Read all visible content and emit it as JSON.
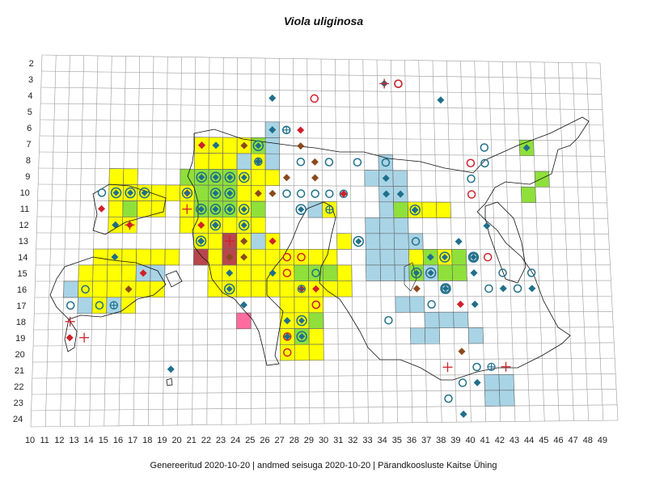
{
  "title": "Viola uliginosa",
  "footer": {
    "generated": "Genereeritud 2020-10-20",
    "data_state": "andmed seisuga 2020-10-20",
    "org": "Pärandkoosluste Kaitse Ühing",
    "separator": "|"
  },
  "colors": {
    "grid": "#9a9a9a",
    "yellow": "#ffff00",
    "green": "#8fe03a",
    "blue": "#a8d4e6",
    "darkred": "#b8464c",
    "pink": "#ff6b9e",
    "teal": "#1f6f8b",
    "brown": "#8b4a1c",
    "red": "#d0202a",
    "coast": "#111111"
  },
  "axes": {
    "x_labels": [
      "10",
      "11",
      "12",
      "13",
      "14",
      "15",
      "16",
      "17",
      "18",
      "19",
      "20",
      "21",
      "22",
      "23",
      "24",
      "25",
      "26",
      "27",
      "28",
      "29",
      "30",
      "31",
      "32",
      "33",
      "34",
      "35",
      "36",
      "37",
      "38",
      "39",
      "40",
      "41",
      "42",
      "43",
      "44",
      "45",
      "46",
      "47",
      "48",
      "49"
    ],
    "y_labels": [
      "2",
      "3",
      "4",
      "5",
      "6",
      "7",
      "8",
      "9",
      "10",
      "11",
      "12",
      "13",
      "14",
      "15",
      "16",
      "17",
      "18",
      "19",
      "20",
      "21",
      "22",
      "23",
      "24"
    ]
  },
  "legend_note": "",
  "cells": {
    "yellow": [
      [
        21,
        7
      ],
      [
        22,
        7
      ],
      [
        23,
        7
      ],
      [
        24,
        7
      ],
      [
        25,
        7
      ],
      [
        21,
        8
      ],
      [
        22,
        8
      ],
      [
        23,
        8
      ],
      [
        24,
        8
      ],
      [
        25,
        8
      ],
      [
        26,
        8
      ],
      [
        15,
        9
      ],
      [
        16,
        9
      ],
      [
        20,
        9
      ],
      [
        21,
        9
      ],
      [
        22,
        9
      ],
      [
        23,
        9
      ],
      [
        24,
        9
      ],
      [
        25,
        9
      ],
      [
        26,
        9
      ],
      [
        15,
        10
      ],
      [
        16,
        10
      ],
      [
        17,
        10
      ],
      [
        18,
        10
      ],
      [
        19,
        10
      ],
      [
        20,
        10
      ],
      [
        21,
        10
      ],
      [
        22,
        10
      ],
      [
        23,
        10
      ],
      [
        24,
        10
      ],
      [
        25,
        10
      ],
      [
        15,
        11
      ],
      [
        16,
        11
      ],
      [
        17,
        11
      ],
      [
        18,
        11
      ],
      [
        20,
        11
      ],
      [
        21,
        11
      ],
      [
        22,
        11
      ],
      [
        23,
        11
      ],
      [
        24,
        11
      ],
      [
        25,
        11
      ],
      [
        30,
        11
      ],
      [
        15,
        12
      ],
      [
        16,
        12
      ],
      [
        20,
        12
      ],
      [
        21,
        12
      ],
      [
        22,
        12
      ],
      [
        23,
        12
      ],
      [
        24,
        12
      ],
      [
        25,
        12
      ],
      [
        21,
        13
      ],
      [
        22,
        13
      ],
      [
        23,
        13
      ],
      [
        24,
        13
      ],
      [
        26,
        13
      ],
      [
        31,
        13
      ],
      [
        14,
        14
      ],
      [
        15,
        14
      ],
      [
        16,
        14
      ],
      [
        17,
        14
      ],
      [
        18,
        14
      ],
      [
        19,
        14
      ],
      [
        21,
        14
      ],
      [
        22,
        14
      ],
      [
        23,
        14
      ],
      [
        24,
        14
      ],
      [
        25,
        14
      ],
      [
        26,
        14
      ],
      [
        27,
        14
      ],
      [
        28,
        14
      ],
      [
        29,
        14
      ],
      [
        30,
        14
      ],
      [
        13,
        15
      ],
      [
        14,
        15
      ],
      [
        15,
        15
      ],
      [
        16,
        15
      ],
      [
        17,
        15
      ],
      [
        18,
        15
      ],
      [
        22,
        15
      ],
      [
        23,
        15
      ],
      [
        24,
        15
      ],
      [
        25,
        15
      ],
      [
        26,
        15
      ],
      [
        27,
        15
      ],
      [
        28,
        15
      ],
      [
        29,
        15
      ],
      [
        30,
        15
      ],
      [
        31,
        15
      ],
      [
        12,
        16
      ],
      [
        13,
        16
      ],
      [
        14,
        16
      ],
      [
        15,
        16
      ],
      [
        16,
        16
      ],
      [
        17,
        16
      ],
      [
        18,
        16
      ],
      [
        22,
        16
      ],
      [
        23,
        16
      ],
      [
        24,
        16
      ],
      [
        25,
        16
      ],
      [
        26,
        16
      ],
      [
        27,
        16
      ],
      [
        28,
        16
      ],
      [
        29,
        16
      ],
      [
        30,
        16
      ],
      [
        31,
        16
      ],
      [
        14,
        17
      ],
      [
        15,
        17
      ],
      [
        16,
        17
      ],
      [
        27,
        17
      ],
      [
        28,
        17
      ],
      [
        29,
        17
      ],
      [
        27,
        18
      ],
      [
        28,
        18
      ],
      [
        29,
        18
      ],
      [
        27,
        19
      ],
      [
        28,
        19
      ],
      [
        29,
        19
      ],
      [
        27,
        20
      ],
      [
        28,
        20
      ],
      [
        29,
        20
      ],
      [
        36,
        11
      ],
      [
        37,
        11
      ],
      [
        38,
        11
      ],
      [
        35,
        14
      ],
      [
        36,
        14
      ],
      [
        37,
        14
      ],
      [
        38,
        14
      ],
      [
        35,
        15
      ],
      [
        36,
        15
      ],
      [
        37,
        15
      ],
      [
        38,
        15
      ],
      [
        39,
        15
      ]
    ],
    "green": [
      [
        25,
        7
      ],
      [
        20,
        9
      ],
      [
        21,
        9
      ],
      [
        22,
        9
      ],
      [
        23,
        9
      ],
      [
        21,
        10
      ],
      [
        22,
        10
      ],
      [
        23,
        10
      ],
      [
        21,
        11
      ],
      [
        22,
        11
      ],
      [
        23,
        11
      ],
      [
        25,
        11
      ],
      [
        16,
        11
      ],
      [
        28,
        15
      ],
      [
        29,
        15
      ],
      [
        30,
        15
      ],
      [
        29,
        18
      ],
      [
        28,
        19
      ],
      [
        37,
        14
      ],
      [
        39,
        14
      ],
      [
        36,
        15
      ],
      [
        38,
        15
      ],
      [
        39,
        15
      ],
      [
        44,
        7
      ],
      [
        44,
        10
      ],
      [
        45,
        9
      ],
      [
        35,
        11
      ]
    ],
    "blue": [
      [
        26,
        6
      ],
      [
        26,
        7
      ],
      [
        26,
        8
      ],
      [
        24,
        8
      ],
      [
        34,
        8
      ],
      [
        33,
        9
      ],
      [
        34,
        9
      ],
      [
        35,
        9
      ],
      [
        34,
        10
      ],
      [
        35,
        10
      ],
      [
        29,
        11
      ],
      [
        34,
        11
      ],
      [
        35,
        11
      ],
      [
        33,
        12
      ],
      [
        34,
        12
      ],
      [
        35,
        12
      ],
      [
        33,
        13
      ],
      [
        34,
        13
      ],
      [
        35,
        13
      ],
      [
        36,
        13
      ],
      [
        33,
        14
      ],
      [
        34,
        14
      ],
      [
        35,
        14
      ],
      [
        33,
        15
      ],
      [
        34,
        15
      ],
      [
        35,
        15
      ],
      [
        36,
        15
      ],
      [
        37,
        15
      ],
      [
        38,
        15
      ],
      [
        17,
        15
      ],
      [
        18,
        15
      ],
      [
        12,
        16
      ],
      [
        13,
        17
      ],
      [
        15,
        17
      ],
      [
        25,
        13
      ],
      [
        35,
        17
      ],
      [
        36,
        17
      ],
      [
        37,
        18
      ],
      [
        38,
        18
      ],
      [
        39,
        18
      ],
      [
        36,
        19
      ],
      [
        37,
        19
      ],
      [
        40,
        19
      ],
      [
        41,
        22
      ],
      [
        42,
        22
      ],
      [
        41,
        23
      ],
      [
        42,
        23
      ]
    ],
    "darkred": [
      [
        23,
        13
      ],
      [
        21,
        14
      ],
      [
        23,
        14
      ]
    ],
    "pink": [
      [
        24,
        18
      ]
    ]
  },
  "markers": {
    "teal_diamond": [
      [
        34,
        3
      ],
      [
        26,
        4
      ],
      [
        38,
        4
      ],
      [
        26,
        6
      ],
      [
        21,
        7
      ],
      [
        22,
        7
      ],
      [
        25,
        8
      ],
      [
        34,
        9
      ],
      [
        35,
        10
      ],
      [
        34,
        10
      ],
      [
        15,
        12
      ],
      [
        22,
        12
      ],
      [
        21,
        13
      ],
      [
        24,
        13
      ],
      [
        15,
        14
      ],
      [
        23,
        15
      ],
      [
        26,
        15
      ],
      [
        24,
        17
      ],
      [
        27,
        18
      ],
      [
        27,
        19
      ],
      [
        36,
        11
      ],
      [
        39,
        13
      ],
      [
        37,
        14
      ],
      [
        40,
        15
      ],
      [
        42,
        16
      ],
      [
        40,
        17
      ],
      [
        44,
        7
      ],
      [
        44,
        16
      ],
      [
        41,
        12
      ],
      [
        40,
        22
      ],
      [
        39,
        24
      ],
      [
        19,
        21
      ]
    ],
    "brown_diamond": [
      [
        24,
        7
      ],
      [
        28,
        7
      ],
      [
        29,
        8
      ],
      [
        25,
        10
      ],
      [
        26,
        10
      ],
      [
        29,
        9
      ],
      [
        24,
        13
      ],
      [
        24,
        14
      ],
      [
        16,
        16
      ],
      [
        36,
        16
      ],
      [
        39,
        20
      ],
      [
        27,
        9
      ],
      [
        23,
        14
      ]
    ],
    "red_diamond": [
      [
        21,
        7
      ],
      [
        28,
        6
      ],
      [
        20,
        10
      ],
      [
        31,
        10
      ],
      [
        14,
        11
      ],
      [
        16,
        12
      ],
      [
        21,
        12
      ],
      [
        17,
        15
      ],
      [
        26,
        13
      ],
      [
        28,
        16
      ],
      [
        12,
        19
      ],
      [
        39,
        17
      ],
      [
        29,
        16
      ]
    ],
    "teal_circle": [
      [
        35,
        3
      ],
      [
        27,
        6
      ],
      [
        25,
        8
      ],
      [
        28,
        8
      ],
      [
        30,
        8
      ],
      [
        32,
        8
      ],
      [
        34,
        8
      ],
      [
        41,
        7
      ],
      [
        41,
        8
      ],
      [
        29,
        10
      ],
      [
        30,
        10
      ],
      [
        28,
        10
      ],
      [
        31,
        10
      ],
      [
        27,
        10
      ],
      [
        14,
        10
      ],
      [
        13,
        16
      ],
      [
        12,
        17
      ],
      [
        14,
        17
      ],
      [
        40,
        9
      ],
      [
        36,
        13
      ],
      [
        40,
        14
      ],
      [
        29,
        15
      ],
      [
        29,
        17
      ],
      [
        38,
        16
      ],
      [
        42,
        15
      ],
      [
        37,
        17
      ],
      [
        34,
        18
      ],
      [
        41,
        16
      ],
      [
        39,
        22
      ],
      [
        40,
        21
      ],
      [
        38,
        23
      ],
      [
        43,
        16
      ],
      [
        44,
        15
      ]
    ],
    "red_circle": [
      [
        35,
        3
      ],
      [
        29,
        4
      ],
      [
        40,
        8
      ],
      [
        40,
        10
      ],
      [
        27,
        14
      ],
      [
        28,
        14
      ],
      [
        27,
        15
      ],
      [
        29,
        17
      ],
      [
        27,
        19
      ],
      [
        27,
        20
      ],
      [
        41,
        14
      ]
    ],
    "teal_target": [
      [
        25,
        7
      ],
      [
        21,
        9
      ],
      [
        22,
        9
      ],
      [
        23,
        9
      ],
      [
        24,
        9
      ],
      [
        15,
        10
      ],
      [
        16,
        10
      ],
      [
        17,
        10
      ],
      [
        20,
        10
      ],
      [
        22,
        10
      ],
      [
        23,
        10
      ],
      [
        21,
        11
      ],
      [
        22,
        11
      ],
      [
        23,
        11
      ],
      [
        24,
        11
      ],
      [
        22,
        12
      ],
      [
        24,
        12
      ],
      [
        21,
        13
      ],
      [
        23,
        16
      ],
      [
        28,
        11
      ],
      [
        32,
        13
      ],
      [
        36,
        15
      ],
      [
        37,
        15
      ],
      [
        38,
        14
      ],
      [
        40,
        14
      ],
      [
        36,
        11
      ],
      [
        38,
        16
      ],
      [
        28,
        18
      ],
      [
        28,
        19
      ]
    ],
    "plus_cross": [
      [
        34,
        3
      ],
      [
        20,
        11
      ],
      [
        23,
        13
      ],
      [
        16,
        12
      ],
      [
        12,
        18
      ],
      [
        13,
        19
      ],
      [
        38,
        21
      ],
      [
        42,
        21
      ]
    ],
    "circle_plus": [
      [
        27,
        6
      ],
      [
        15,
        17
      ],
      [
        28,
        16
      ],
      [
        41,
        21
      ],
      [
        30,
        11
      ]
    ]
  }
}
